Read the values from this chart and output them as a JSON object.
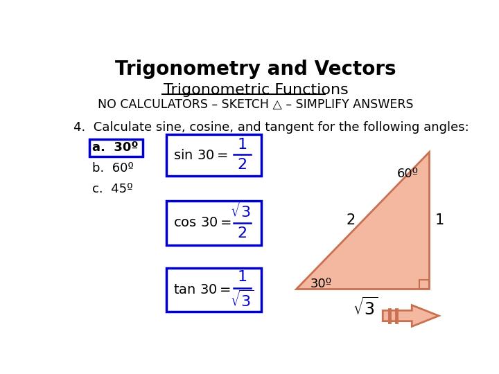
{
  "title": "Trigonometry and Vectors",
  "subtitle": "Trigonometric Functions",
  "subtitle2": "NO CALCULATORS – SKETCH △ – SIMPLIFY ANSWERS",
  "question": "4.  Calculate sine, cosine, and tangent for the following angles:",
  "parts": [
    "a.  30º",
    "b.  60º",
    "c.  45º"
  ],
  "box_color": "#0000CC",
  "triangle_fill": "#F4B8A0",
  "triangle_stroke": "#C87050",
  "bg_color": "#ffffff",
  "text_color": "#000000",
  "arrow_fill": "#F4B8A0",
  "arrow_stroke": "#C87050"
}
